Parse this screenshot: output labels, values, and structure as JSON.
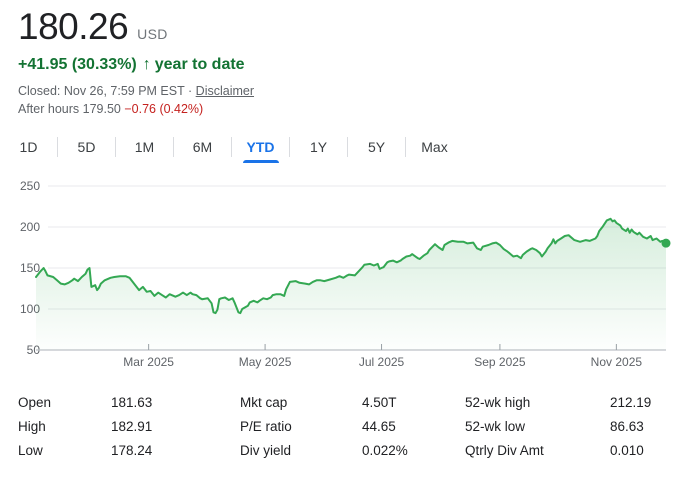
{
  "header": {
    "price": "180.26",
    "currency": "USD",
    "change": "+41.95 (30.33%)",
    "arrow": "↑",
    "period_label": "year to date",
    "closed_text": "Closed: Nov 26, 7:59 PM EST",
    "separator": "·",
    "disclaimer_label": "Disclaimer",
    "after_hours_text": "After hours 179.50",
    "after_hours_change": "−0.76 (0.42%)"
  },
  "tabs": [
    {
      "label": "1D",
      "active": false
    },
    {
      "label": "5D",
      "active": false
    },
    {
      "label": "1M",
      "active": false
    },
    {
      "label": "6M",
      "active": false
    },
    {
      "label": "YTD",
      "active": true
    },
    {
      "label": "1Y",
      "active": false
    },
    {
      "label": "5Y",
      "active": false
    },
    {
      "label": "Max",
      "active": false
    }
  ],
  "chart_data": {
    "type": "area",
    "x_unit": "day-of-year-2025",
    "xlim_days": [
      0,
      330
    ],
    "ylim": [
      50,
      250
    ],
    "y_ticks": [
      50,
      100,
      150,
      200,
      250
    ],
    "x_ticks": [
      {
        "day": 59,
        "label": "Mar 2025"
      },
      {
        "day": 120,
        "label": "May 2025"
      },
      {
        "day": 181,
        "label": "Jul 2025"
      },
      {
        "day": 243,
        "label": "Sep 2025"
      },
      {
        "day": 304,
        "label": "Nov 2025"
      }
    ],
    "line_color": "#34a853",
    "grid_color": "#e8eaed",
    "axis_color": "#bdc1c6",
    "tick_color": "#9aa0a6",
    "label_color": "#5f6368",
    "end_dot": true,
    "points": [
      [
        0,
        139
      ],
      [
        2,
        145
      ],
      [
        4,
        150
      ],
      [
        5,
        146
      ],
      [
        6,
        141
      ],
      [
        9,
        139
      ],
      [
        11,
        135
      ],
      [
        13,
        131
      ],
      [
        15,
        130
      ],
      [
        17,
        132
      ],
      [
        19,
        135
      ],
      [
        20,
        137
      ],
      [
        22,
        134
      ],
      [
        24,
        139
      ],
      [
        26,
        143
      ],
      [
        27,
        148
      ],
      [
        28,
        150
      ],
      [
        29,
        127
      ],
      [
        31,
        129
      ],
      [
        32,
        123
      ],
      [
        33,
        126
      ],
      [
        34,
        131
      ],
      [
        36,
        135
      ],
      [
        39,
        138
      ],
      [
        41,
        139
      ],
      [
        44,
        140
      ],
      [
        47,
        140
      ],
      [
        49,
        138
      ],
      [
        52,
        129
      ],
      [
        54,
        123
      ],
      [
        56,
        127
      ],
      [
        58,
        121
      ],
      [
        60,
        122
      ],
      [
        62,
        116
      ],
      [
        64,
        120
      ],
      [
        66,
        117
      ],
      [
        68,
        114
      ],
      [
        70,
        118
      ],
      [
        73,
        115
      ],
      [
        75,
        117
      ],
      [
        77,
        120
      ],
      [
        79,
        117
      ],
      [
        81,
        120
      ],
      [
        82,
        118
      ],
      [
        84,
        117
      ],
      [
        86,
        113
      ],
      [
        87,
        112
      ],
      [
        90,
        113
      ],
      [
        91,
        110
      ],
      [
        92,
        107
      ],
      [
        93,
        96
      ],
      [
        94,
        95
      ],
      [
        95,
        99
      ],
      [
        96,
        112
      ],
      [
        97,
        113
      ],
      [
        99,
        114
      ],
      [
        101,
        111
      ],
      [
        103,
        113
      ],
      [
        104,
        108
      ],
      [
        106,
        96
      ],
      [
        107,
        95
      ],
      [
        108,
        100
      ],
      [
        111,
        104
      ],
      [
        112,
        108
      ],
      [
        114,
        110
      ],
      [
        116,
        108
      ],
      [
        117,
        110
      ],
      [
        119,
        113
      ],
      [
        121,
        112
      ],
      [
        123,
        114
      ],
      [
        124,
        117
      ],
      [
        126,
        118
      ],
      [
        128,
        118
      ],
      [
        130,
        116
      ],
      [
        131,
        124
      ],
      [
        133,
        133
      ],
      [
        136,
        134
      ],
      [
        138,
        132
      ],
      [
        141,
        131
      ],
      [
        143,
        130
      ],
      [
        145,
        133
      ],
      [
        147,
        135
      ],
      [
        149,
        135
      ],
      [
        151,
        134
      ],
      [
        154,
        136
      ],
      [
        157,
        138
      ],
      [
        159,
        140
      ],
      [
        161,
        138
      ],
      [
        163,
        141
      ],
      [
        164,
        142
      ],
      [
        167,
        141
      ],
      [
        171,
        151
      ],
      [
        172,
        154
      ],
      [
        175,
        155
      ],
      [
        177,
        153
      ],
      [
        179,
        155
      ],
      [
        180,
        149
      ],
      [
        182,
        151
      ],
      [
        184,
        157
      ],
      [
        185,
        158
      ],
      [
        187,
        159
      ],
      [
        189,
        157
      ],
      [
        191,
        159
      ],
      [
        192,
        161
      ],
      [
        194,
        164
      ],
      [
        196,
        165
      ],
      [
        197,
        167
      ],
      [
        200,
        162
      ],
      [
        201,
        161
      ],
      [
        203,
        165
      ],
      [
        205,
        168
      ],
      [
        206,
        172
      ],
      [
        209,
        179
      ],
      [
        211,
        175
      ],
      [
        213,
        172
      ],
      [
        214,
        178
      ],
      [
        216,
        181
      ],
      [
        218,
        183
      ],
      [
        221,
        182
      ],
      [
        224,
        182
      ],
      [
        226,
        180
      ],
      [
        229,
        181
      ],
      [
        231,
        174
      ],
      [
        233,
        172
      ],
      [
        234,
        176
      ],
      [
        237,
        178
      ],
      [
        239,
        180
      ],
      [
        241,
        181
      ],
      [
        243,
        178
      ],
      [
        245,
        173
      ],
      [
        247,
        170
      ],
      [
        248,
        168
      ],
      [
        250,
        164
      ],
      [
        252,
        165
      ],
      [
        254,
        162
      ],
      [
        255,
        166
      ],
      [
        257,
        170
      ],
      [
        259,
        173
      ],
      [
        260,
        174
      ],
      [
        262,
        172
      ],
      [
        264,
        168
      ],
      [
        265,
        164
      ],
      [
        267,
        170
      ],
      [
        268,
        174
      ],
      [
        270,
        180
      ],
      [
        271,
        185
      ],
      [
        272,
        180
      ],
      [
        273,
        183
      ],
      [
        275,
        186
      ],
      [
        277,
        189
      ],
      [
        279,
        190
      ],
      [
        280,
        188
      ],
      [
        282,
        184
      ],
      [
        285,
        182
      ],
      [
        288,
        184
      ],
      [
        290,
        183
      ],
      [
        293,
        186
      ],
      [
        294,
        189
      ],
      [
        295,
        195
      ],
      [
        297,
        201
      ],
      [
        299,
        208
      ],
      [
        301,
        210
      ],
      [
        302,
        207
      ],
      [
        303,
        208
      ],
      [
        304,
        205
      ],
      [
        306,
        202
      ],
      [
        307,
        198
      ],
      [
        309,
        195
      ],
      [
        310,
        198
      ],
      [
        311,
        193
      ],
      [
        312,
        197
      ],
      [
        313,
        194
      ],
      [
        315,
        191
      ],
      [
        316,
        193
      ],
      [
        318,
        188
      ],
      [
        320,
        186
      ],
      [
        322,
        189
      ],
      [
        323,
        184
      ],
      [
        325,
        186
      ],
      [
        327,
        182
      ],
      [
        328,
        183
      ],
      [
        330,
        180.3
      ]
    ]
  },
  "stats": {
    "columns": [
      {
        "rows": [
          {
            "label": "Open",
            "value": "181.63"
          },
          {
            "label": "High",
            "value": "182.91"
          },
          {
            "label": "Low",
            "value": "178.24"
          }
        ]
      },
      {
        "rows": [
          {
            "label": "Mkt cap",
            "value": "4.50T"
          },
          {
            "label": "P/E ratio",
            "value": "44.65"
          },
          {
            "label": "Div yield",
            "value": "0.022%"
          }
        ]
      },
      {
        "rows": [
          {
            "label": "52-wk high",
            "value": "212.19"
          },
          {
            "label": "52-wk low",
            "value": "86.63"
          },
          {
            "label": "Qtrly Div Amt",
            "value": "0.010"
          }
        ]
      }
    ]
  },
  "colors": {
    "accent_blue": "#1a73e8",
    "green_text": "#137333",
    "line_green": "#34a853",
    "red_text": "#c5221f"
  }
}
